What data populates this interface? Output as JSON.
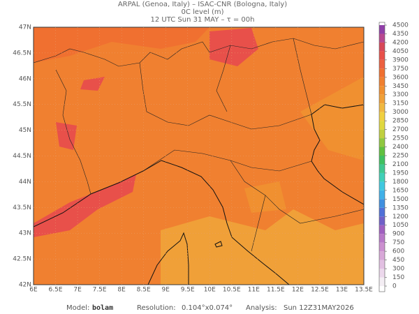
{
  "header": {
    "line1": "ARPAL (Genoa, Italy)  –  ISAC-CNR (Bologna, Italy)",
    "line2": "0C level (m)",
    "line3": "12 UTC Sun 31 MAY  –  τ = 00h"
  },
  "map": {
    "lon_labels": [
      "6E",
      "6.5E",
      "7E",
      "7.5E",
      "8E",
      "8.5E",
      "9E",
      "9.5E",
      "10E",
      "10.5E",
      "11E",
      "11.5E",
      "12E",
      "12.5E",
      "13E",
      "13.5E"
    ],
    "lat_labels": [
      "47N",
      "46.5N",
      "46N",
      "45.5N",
      "45N",
      "44.5N",
      "44N",
      "43.5N",
      "43N",
      "42.5N",
      "42N"
    ]
  },
  "colorbar": {
    "levels": [
      0,
      150,
      300,
      450,
      600,
      750,
      900,
      1050,
      1200,
      1350,
      1500,
      1650,
      1800,
      1950,
      2100,
      2250,
      2400,
      2550,
      2700,
      2850,
      3000,
      3150,
      3300,
      3450,
      3600,
      3750,
      3900,
      4050,
      4200,
      4350,
      4500
    ],
    "colors": [
      "#f4eef4",
      "#ecd8ec",
      "#e2c0e2",
      "#d8a8d8",
      "#cc90d0",
      "#b878c8",
      "#a060c0",
      "#7060c8",
      "#5070d8",
      "#4090e0",
      "#40b0e8",
      "#40c8e0",
      "#40d0b8",
      "#40c890",
      "#40c060",
      "#60c040",
      "#90c840",
      "#c0d040",
      "#e0d840",
      "#f0d040",
      "#f0b840",
      "#f0a038",
      "#f09030",
      "#f08030",
      "#f07030",
      "#ec6040",
      "#e8504a",
      "#d84858",
      "#b84890",
      "#9040a8"
    ]
  },
  "footer": {
    "model_label": "Model:",
    "model": "bolam",
    "res_label": "Resolution:",
    "res": "0.104°x0.074°",
    "analysis_label": "Analysis:",
    "analysis": "Sun 12Z31MAY2026"
  }
}
